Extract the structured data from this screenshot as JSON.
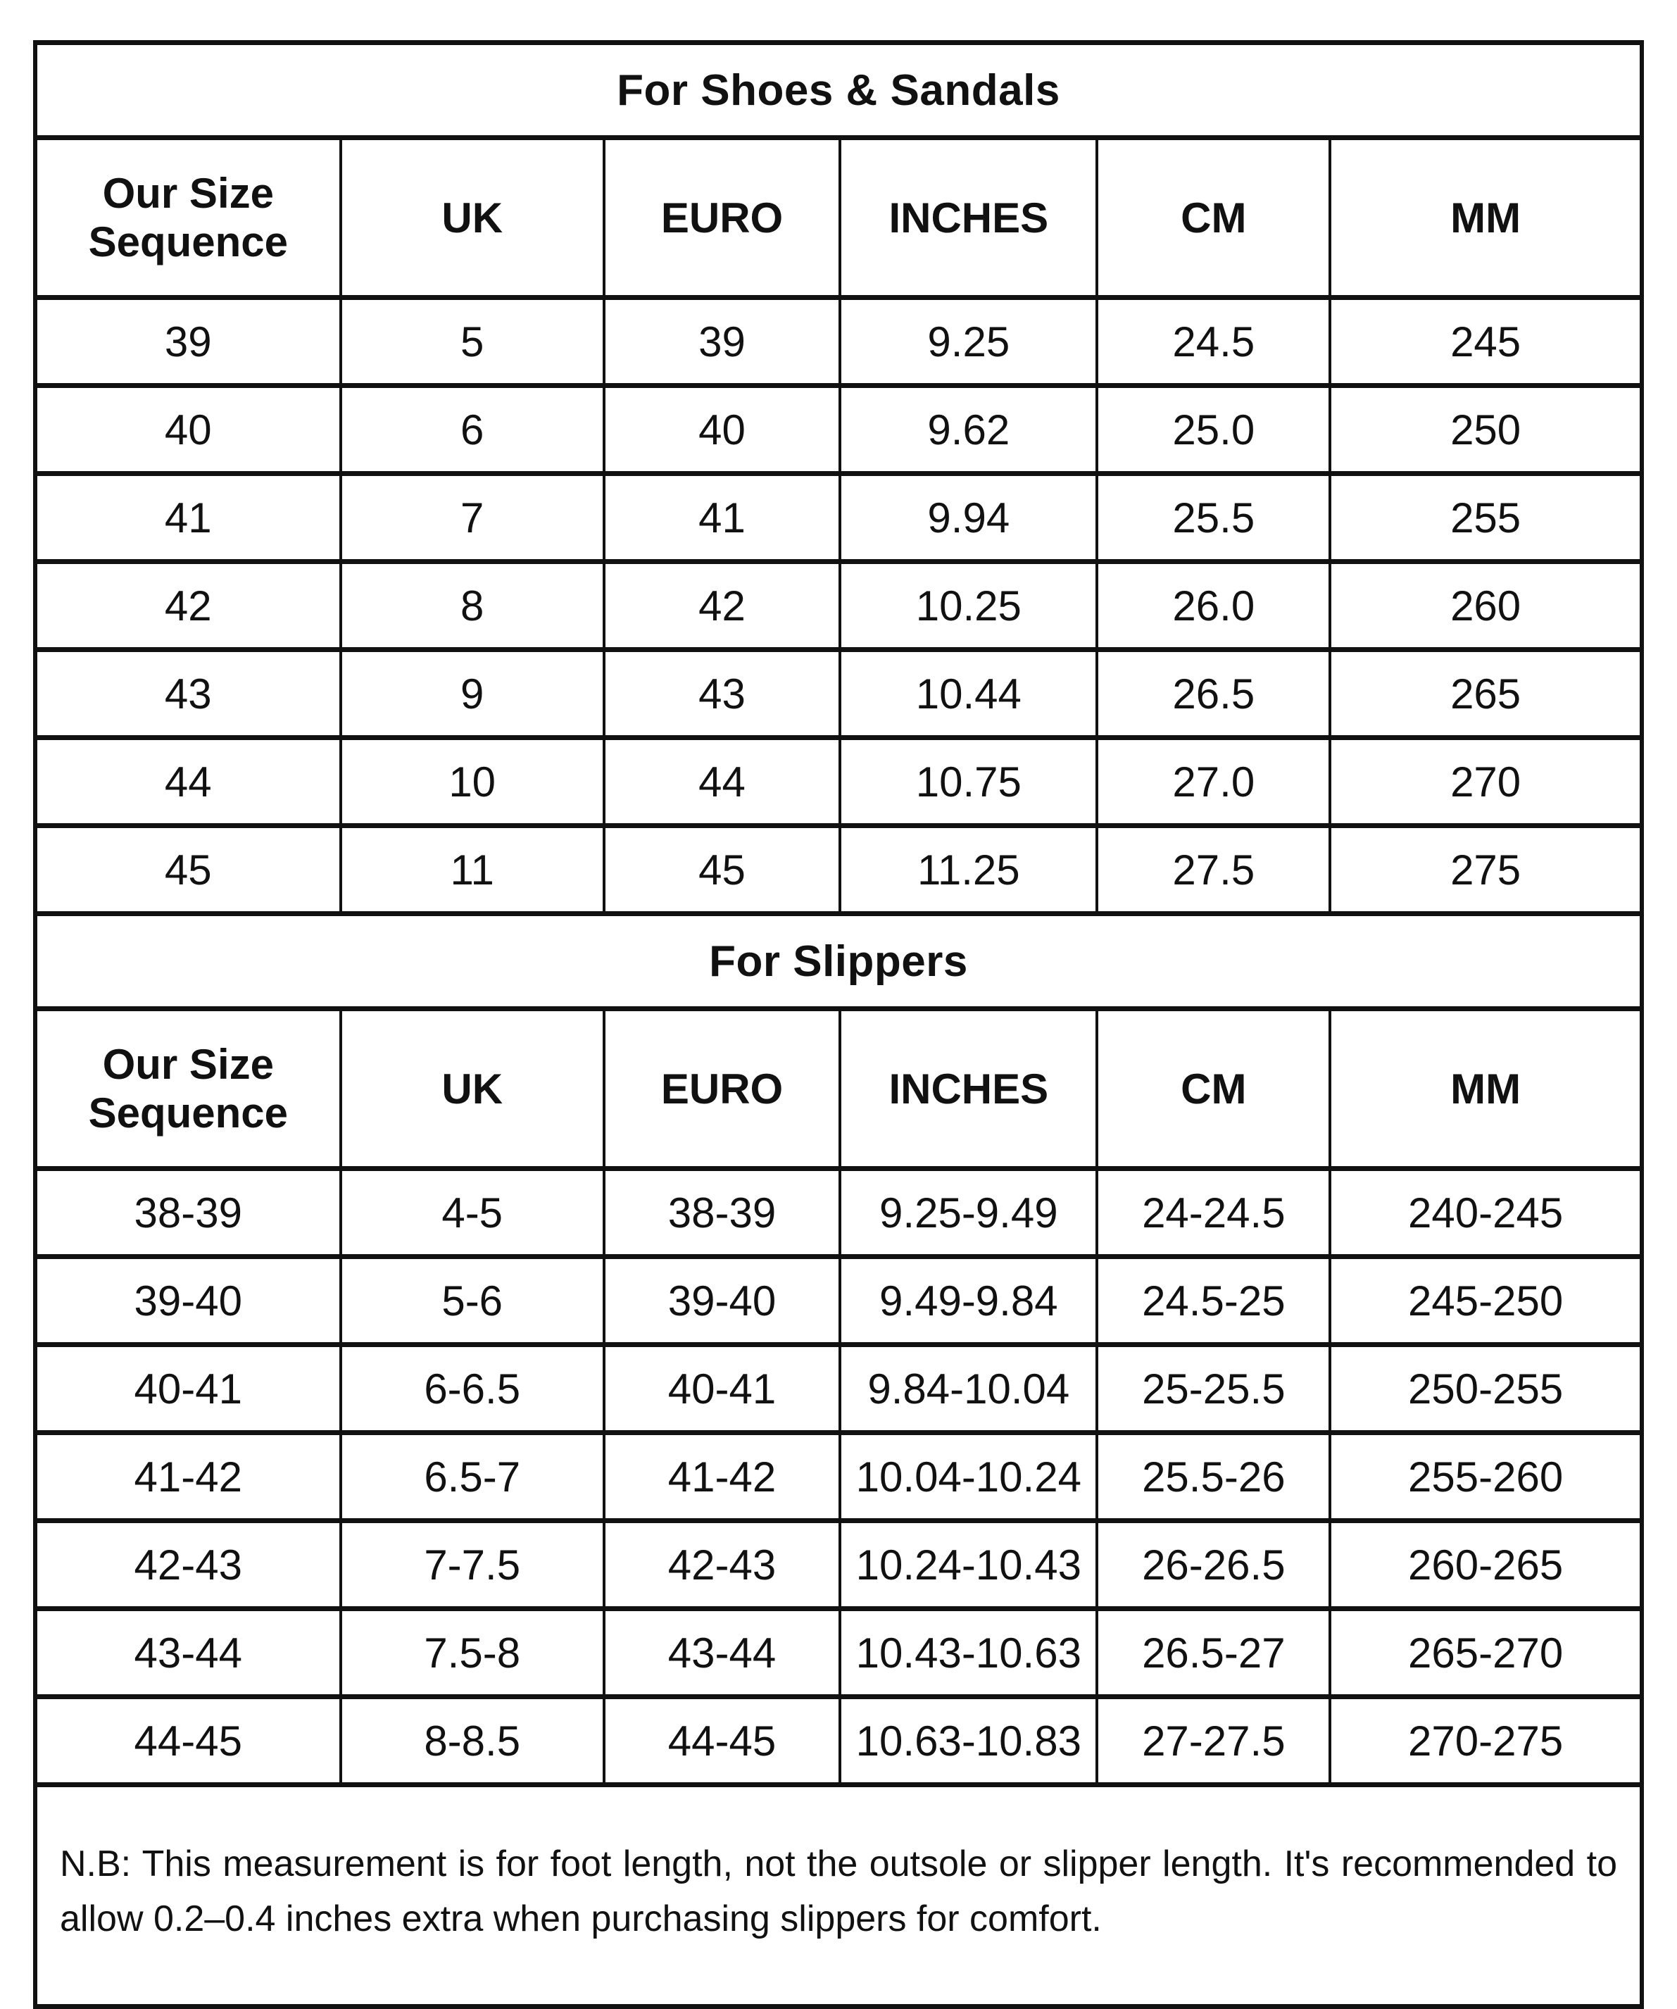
{
  "page": {
    "background": "#ffffff",
    "text_color": "#111111",
    "border_color": "#111111"
  },
  "shoes_table": {
    "title": "For Shoes & Sandals",
    "columns": [
      "Our Size Sequence",
      "UK",
      "EURO",
      "INCHES",
      "CM",
      "MM"
    ],
    "rows": [
      [
        "39",
        "5",
        "39",
        "9.25",
        "24.5",
        "245"
      ],
      [
        "40",
        "6",
        "40",
        "9.62",
        "25.0",
        "250"
      ],
      [
        "41",
        "7",
        "41",
        "9.94",
        "25.5",
        "255"
      ],
      [
        "42",
        "8",
        "42",
        "10.25",
        "26.0",
        "260"
      ],
      [
        "43",
        "9",
        "43",
        "10.44",
        "26.5",
        "265"
      ],
      [
        "44",
        "10",
        "44",
        "10.75",
        "27.0",
        "270"
      ],
      [
        "45",
        "11",
        "45",
        "11.25",
        "27.5",
        "275"
      ]
    ]
  },
  "slippers_table": {
    "title": "For Slippers",
    "columns": [
      "Our Size Sequence",
      "UK",
      "EURO",
      "INCHES",
      "CM",
      "MM"
    ],
    "rows": [
      [
        "38-39",
        "4-5",
        "38-39",
        "9.25-9.49",
        "24-24.5",
        "240-245"
      ],
      [
        "39-40",
        "5-6",
        "39-40",
        "9.49-9.84",
        "24.5-25",
        "245-250"
      ],
      [
        "40-41",
        "6-6.5",
        "40-41",
        "9.84-10.04",
        "25-25.5",
        "250-255"
      ],
      [
        "41-42",
        "6.5-7",
        "41-42",
        "10.04-10.24",
        "25.5-26",
        "255-260"
      ],
      [
        "42-43",
        "7-7.5",
        "42-43",
        "10.24-10.43",
        "26-26.5",
        "260-265"
      ],
      [
        "43-44",
        "7.5-8",
        "43-44",
        "10.43-10.63",
        "26.5-27",
        "265-270"
      ],
      [
        "44-45",
        "8-8.5",
        "44-45",
        "10.63-10.83",
        "27-27.5",
        "270-275"
      ]
    ]
  },
  "footnote": "N.B: This measurement is for foot length, not the outsole or slipper length. It's recommended to allow 0.2–0.4 inches extra when purchasing slippers for comfort."
}
